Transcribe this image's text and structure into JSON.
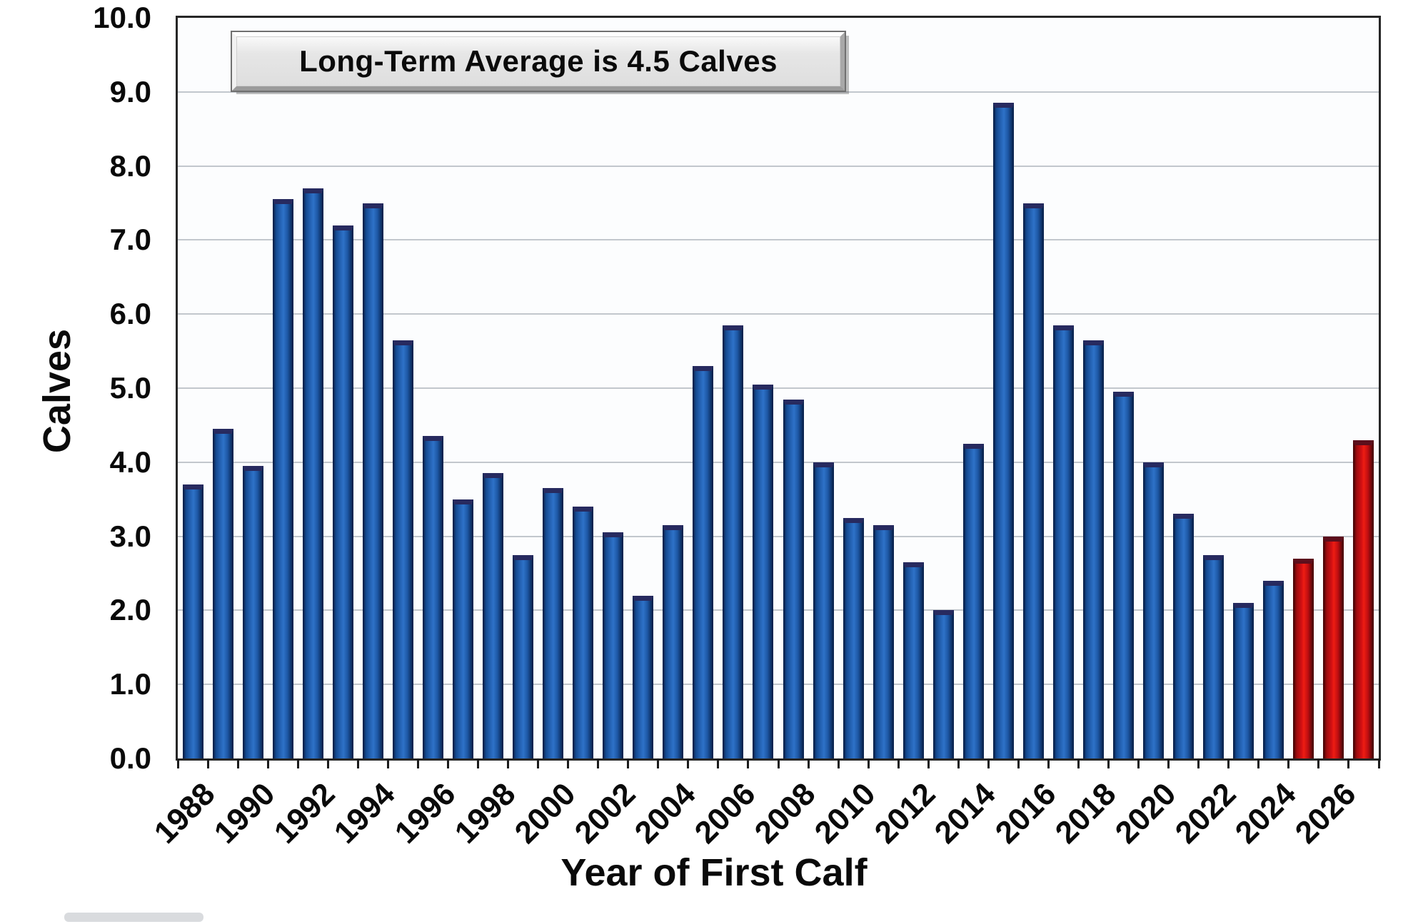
{
  "title_box": {
    "label": "Long-Term Average is 4.5 Calves"
  },
  "y_axis": {
    "title": "Calves",
    "tick_labels": [
      "0.0",
      "1.0",
      "2.0",
      "3.0",
      "4.0",
      "5.0",
      "6.0",
      "7.0",
      "8.0",
      "9.0",
      "10.0"
    ]
  },
  "x_axis": {
    "title": "Year of First Calf",
    "labeled_years": [
      1988,
      1990,
      1992,
      1994,
      1996,
      1998,
      2000,
      2002,
      2004,
      2006,
      2008,
      2010,
      2012,
      2014,
      2016,
      2018,
      2020,
      2022,
      2024,
      2026
    ]
  },
  "colors": {
    "bar_default": "#1b57a5",
    "bar_projection": "#cf1013",
    "gridline": "#c2c7cd",
    "frame": "#262626"
  },
  "chart_data": {
    "type": "bar",
    "title": "Long-Term Average is 4.5 Calves",
    "xlabel": "Year of First Calf",
    "ylabel": "Calves",
    "ylim": [
      0,
      10
    ],
    "grid": true,
    "long_term_average": 4.5,
    "categories": [
      1988,
      1989,
      1990,
      1991,
      1992,
      1993,
      1994,
      1995,
      1996,
      1997,
      1998,
      1999,
      2000,
      2001,
      2002,
      2003,
      2004,
      2005,
      2006,
      2007,
      2008,
      2009,
      2010,
      2011,
      2012,
      2013,
      2014,
      2015,
      2016,
      2017,
      2018,
      2019,
      2020,
      2021,
      2022,
      2023,
      2024,
      2025,
      2026,
      2027
    ],
    "values": [
      3.7,
      4.45,
      3.95,
      7.55,
      7.7,
      7.2,
      7.5,
      5.65,
      4.35,
      3.5,
      3.85,
      2.75,
      3.65,
      3.4,
      3.05,
      2.2,
      3.15,
      5.3,
      5.85,
      5.05,
      4.85,
      4.0,
      3.25,
      3.15,
      2.65,
      2.0,
      4.25,
      8.85,
      7.5,
      5.85,
      5.65,
      4.95,
      4.0,
      3.3,
      2.75,
      2.1,
      2.4,
      2.7,
      3.0,
      4.3
    ],
    "red_years": [
      2025,
      2026,
      2027
    ]
  }
}
